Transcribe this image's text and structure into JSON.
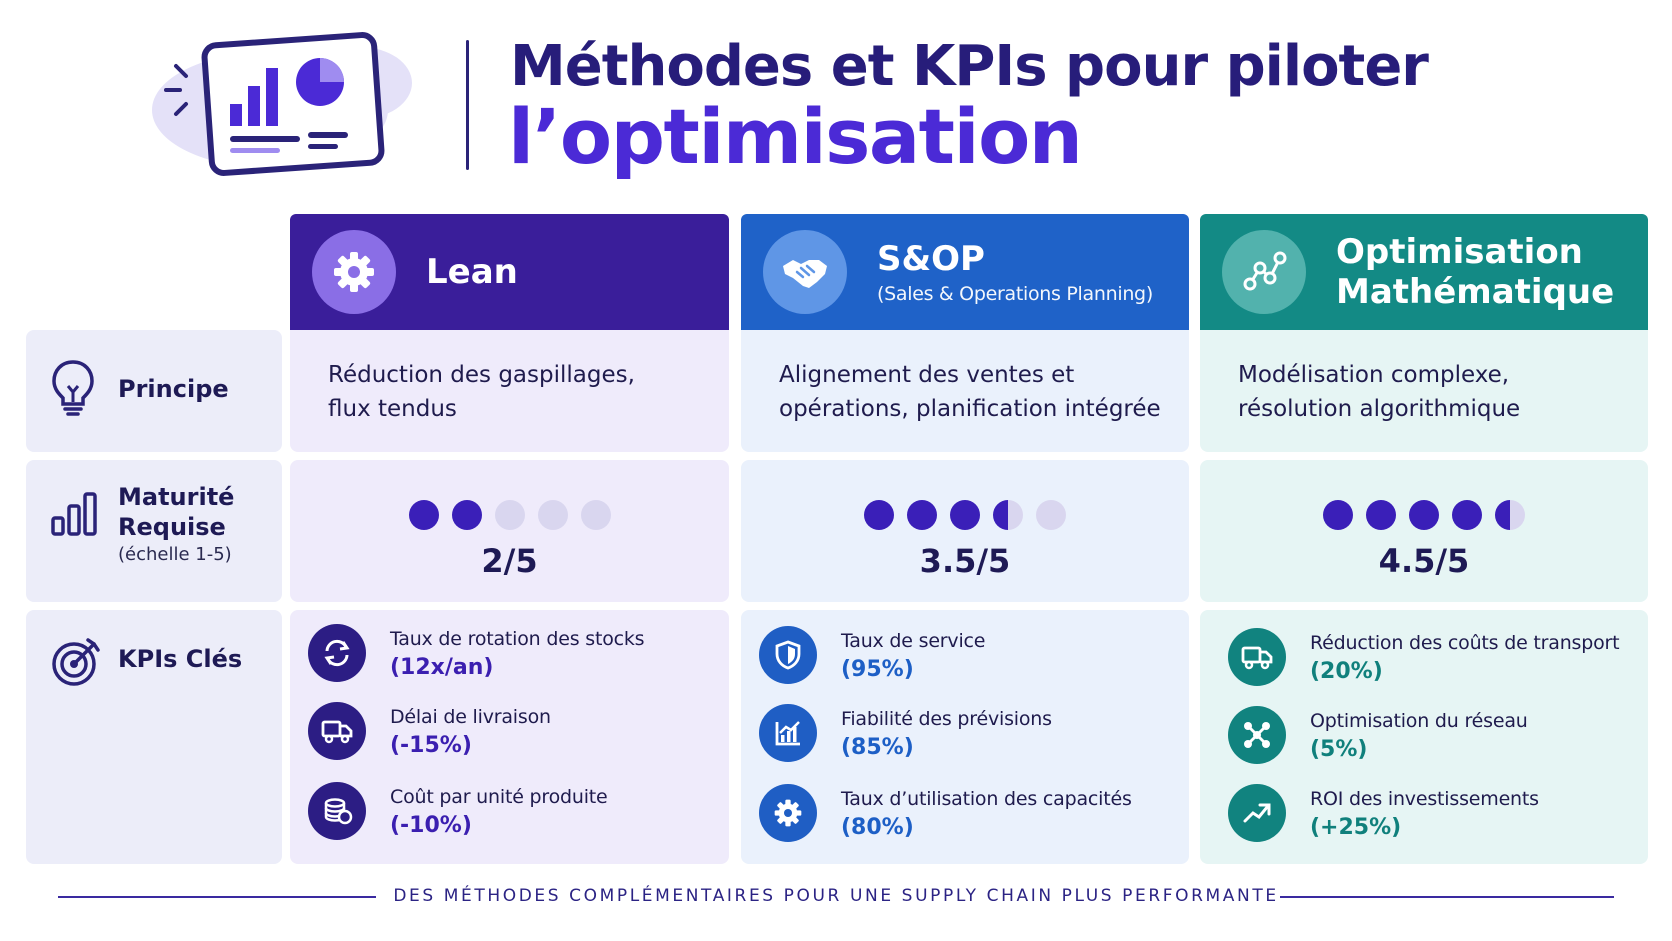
{
  "title": {
    "line1": "Méthodes et KPIs pour piloter",
    "line2": "l’optimisation"
  },
  "row_labels": {
    "principle": "Principe",
    "maturity": "Maturité Requise",
    "maturity_line1": "Maturité",
    "maturity_line2": "Requise",
    "maturity_scale": "(échelle 1-5)",
    "kpis": "KPIs Clés"
  },
  "methods": [
    {
      "name": "Lean",
      "subtitle": "",
      "icon": "gear-icon",
      "color": "#3a1e9a",
      "principle_line1": "Réduction des gaspillages,",
      "principle_line2": "flux tendus",
      "maturity": 2,
      "maturity_label": "2/5",
      "kpis": [
        {
          "name": "Taux de rotation des stocks",
          "value": "(12x/an)",
          "icon": "refresh-icon"
        },
        {
          "name": "Délai de livraison",
          "value": "(-15%)",
          "icon": "truck-icon"
        },
        {
          "name": "Coût par unité produite",
          "value": "(-10%)",
          "icon": "coins-icon"
        }
      ]
    },
    {
      "name": "S&OP",
      "subtitle": "(Sales & Operations Planning)",
      "icon": "handshake-icon",
      "color": "#1f62c8",
      "principle_line1": "Alignement des ventes et",
      "principle_line2": "opérations, planification intégrée",
      "maturity": 3.5,
      "maturity_label": "3.5/5",
      "kpis": [
        {
          "name": "Taux de service",
          "value": "(95%)",
          "icon": "shield-icon"
        },
        {
          "name": "Fiabilité des prévisions",
          "value": "(85%)",
          "icon": "chart-icon"
        },
        {
          "name": "Taux d’utilisation des capacités",
          "value": "(80%)",
          "icon": "gear-icon"
        }
      ]
    },
    {
      "name_line1": "Optimisation",
      "name_line2": "Mathématique",
      "subtitle": "",
      "icon": "nodes-icon",
      "color": "#138a85",
      "principle_line1": "Modélisation complexe,",
      "principle_line2": "résolution algorithmique",
      "maturity": 4.5,
      "maturity_label": "4.5/5",
      "kpis": [
        {
          "name": "Réduction des coûts de transport",
          "value": "(20%)",
          "icon": "truck-icon"
        },
        {
          "name": "Optimisation du réseau",
          "value": "(5%)",
          "icon": "network-icon"
        },
        {
          "name": "ROI des investissements",
          "value": "(+25%)",
          "icon": "trend-up-icon"
        }
      ]
    }
  ],
  "footer": "DES MÉTHODES COMPLÉMENTAIRES POUR UNE SUPPLY CHAIN PLUS PERFORMANTE"
}
